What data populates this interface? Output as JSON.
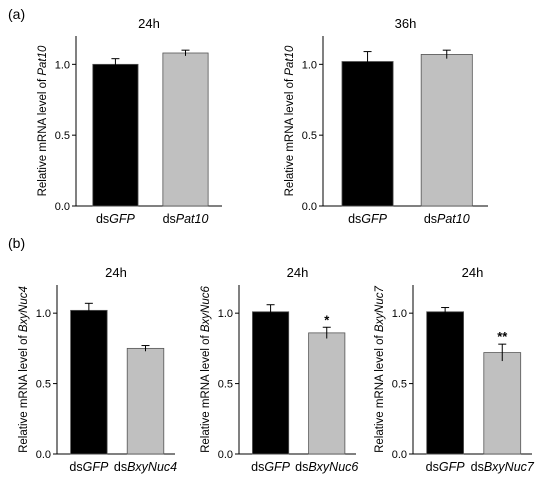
{
  "panels": [
    {
      "label": "(a)"
    },
    {
      "label": "(b)"
    }
  ],
  "chart_data": [
    {
      "type": "bar",
      "panel": "(a)",
      "title": "24h",
      "ylabel_prefix": "Relative mRNA level of ",
      "ylabel_gene": "Pat10",
      "ylim": [
        0,
        1.2
      ],
      "yticks": [
        0.0,
        0.5,
        1.0
      ],
      "categories": [
        {
          "prefix": "ds",
          "gene": "GFP",
          "value": 1.0,
          "error": 0.04,
          "color": "#000000",
          "significance": ""
        },
        {
          "prefix": "ds",
          "gene": "Pat10",
          "value": 1.08,
          "error": 0.02,
          "color": "#c0c0c0",
          "significance": ""
        }
      ]
    },
    {
      "type": "bar",
      "panel": "(a)",
      "title": "36h",
      "ylabel_prefix": "Relative mRNA level of ",
      "ylabel_gene": "Pat10",
      "ylim": [
        0,
        1.2
      ],
      "yticks": [
        0.0,
        0.5,
        1.0
      ],
      "categories": [
        {
          "prefix": "ds",
          "gene": "GFP",
          "value": 1.02,
          "error": 0.07,
          "color": "#000000",
          "significance": ""
        },
        {
          "prefix": "ds",
          "gene": "Pat10",
          "value": 1.07,
          "error": 0.03,
          "color": "#c0c0c0",
          "significance": ""
        }
      ]
    },
    {
      "type": "bar",
      "panel": "(b)",
      "title": "24h",
      "ylabel_prefix": "Relative mRNA level of ",
      "ylabel_gene": "BxyNuc4",
      "ylim": [
        0,
        1.2
      ],
      "yticks": [
        0.0,
        0.5,
        1.0
      ],
      "categories": [
        {
          "prefix": "ds",
          "gene": "GFP",
          "value": 1.02,
          "error": 0.05,
          "color": "#000000",
          "significance": ""
        },
        {
          "prefix": "ds",
          "gene": "BxyNuc4",
          "value": 0.75,
          "error": 0.02,
          "color": "#c0c0c0",
          "significance": ""
        }
      ]
    },
    {
      "type": "bar",
      "panel": "(b)",
      "title": "24h",
      "ylabel_prefix": "Relative mRNA level of ",
      "ylabel_gene": "BxyNuc6",
      "ylim": [
        0,
        1.2
      ],
      "yticks": [
        0.0,
        0.5,
        1.0
      ],
      "categories": [
        {
          "prefix": "ds",
          "gene": "GFP",
          "value": 1.01,
          "error": 0.05,
          "color": "#000000",
          "significance": ""
        },
        {
          "prefix": "ds",
          "gene": "BxyNuc6",
          "value": 0.86,
          "error": 0.04,
          "color": "#c0c0c0",
          "significance": "*"
        }
      ]
    },
    {
      "type": "bar",
      "panel": "(b)",
      "title": "24h",
      "ylabel_prefix": "Relative mRNA level of ",
      "ylabel_gene": "BxyNuc7",
      "ylim": [
        0,
        1.2
      ],
      "yticks": [
        0.0,
        0.5,
        1.0
      ],
      "categories": [
        {
          "prefix": "ds",
          "gene": "GFP",
          "value": 1.01,
          "error": 0.03,
          "color": "#000000",
          "significance": ""
        },
        {
          "prefix": "ds",
          "gene": "BxyNuc7",
          "value": 0.72,
          "error": 0.06,
          "color": "#c0c0c0",
          "significance": "**"
        }
      ]
    }
  ]
}
